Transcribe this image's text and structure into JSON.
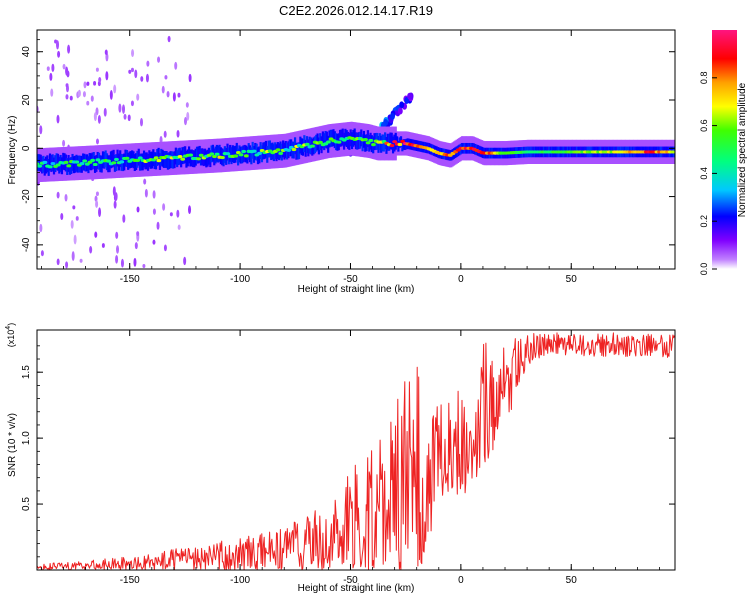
{
  "figure_title": "C2E2.2026.012.14.17.R19",
  "chart_data": [
    {
      "type": "heatmap",
      "name": "spectrogram",
      "xlabel": "Height of straight line (km)",
      "ylabel": "Frequency (Hz)",
      "xlim": [
        -192,
        97
      ],
      "ylim": [
        -50,
        49
      ],
      "xticks": [
        -150,
        -100,
        -50,
        0,
        50
      ],
      "xtick_labels": [
        "-150",
        "-100",
        "-50",
        "0",
        "50"
      ],
      "yticks": [
        -40,
        -20,
        0,
        20,
        40
      ],
      "ytick_labels": [
        "-40",
        "-20",
        "0",
        "20",
        "40"
      ],
      "ridge": {
        "x": [
          -192,
          -170,
          -150,
          -130,
          -110,
          -95,
          -80,
          -70,
          -60,
          -50,
          -42,
          -38,
          -30,
          -25,
          -20,
          -15,
          -10,
          -5,
          0,
          5,
          10,
          20,
          30,
          50,
          70,
          85,
          97
        ],
        "freq": [
          -7,
          -6,
          -5,
          -4,
          -3,
          -2,
          -1,
          1,
          3,
          4,
          3,
          2,
          2,
          2,
          1,
          0,
          -2,
          -3,
          0,
          0,
          -2,
          -2,
          -1.5,
          -1.5,
          -1.5,
          -1.5,
          -1.5
        ],
        "amplitude": [
          0.5,
          0.5,
          0.55,
          0.6,
          0.6,
          0.6,
          0.55,
          0.6,
          0.55,
          0.5,
          0.6,
          0.75,
          0.9,
          0.95,
          0.9,
          0.8,
          0.8,
          0.85,
          0.9,
          0.9,
          0.95,
          0.6,
          0.5,
          0.6,
          0.7,
          0.9,
          0.7
        ]
      },
      "secondary_branch": {
        "x": [
          -50,
          -46,
          -42,
          -38,
          -34,
          -30,
          -26,
          -22
        ],
        "freq": [
          -2,
          0,
          2,
          6,
          10,
          14,
          18,
          22
        ],
        "amplitude": [
          0.3,
          0.35,
          0.4,
          0.35,
          0.3,
          0.25,
          0.25,
          0.2
        ]
      },
      "colorbar": {
        "label": "Normalized spectral amplitude",
        "range": [
          0,
          1
        ],
        "ticks": [
          0.0,
          0.2,
          0.4,
          0.6,
          0.8
        ],
        "tick_labels": [
          "0.0",
          "0.2",
          "0.4",
          "0.6",
          "0.8"
        ]
      }
    },
    {
      "type": "line",
      "name": "snr",
      "xlabel": "Height of straight line (km)",
      "ylabel": "SNR (10 * v/v)",
      "scale_label_prefix": "(x10",
      "scale_label_exp": "4",
      "scale_label_suffix": ")",
      "xlim": [
        -192,
        97
      ],
      "ylim": [
        0,
        1.82
      ],
      "xticks": [
        -150,
        -100,
        -50,
        0,
        50
      ],
      "xtick_labels": [
        "-150",
        "-100",
        "-50",
        "0",
        "50"
      ],
      "yticks": [
        0.5,
        1.0,
        1.5
      ],
      "ytick_labels": [
        "0.5",
        "1.0",
        "1.5"
      ],
      "color": "#ee2222",
      "series": [
        {
          "name": "SNR",
          "x": [
            -192,
            -170,
            -150,
            -140,
            -130,
            -120,
            -110,
            -100,
            -90,
            -80,
            -70,
            -60,
            -55,
            -50,
            -45,
            -40,
            -35,
            -30,
            -25,
            -20,
            -15,
            -10,
            -5,
            0,
            5,
            10,
            15,
            20,
            25,
            30,
            40,
            50,
            60,
            70,
            80,
            90,
            97
          ],
          "lower": [
            0.0,
            0.0,
            0.0,
            0.0,
            0.0,
            0.0,
            0.0,
            0.0,
            0.0,
            0.0,
            0.0,
            0.0,
            0.0,
            0.0,
            0.0,
            0.0,
            0.0,
            0.0,
            0.0,
            0.0,
            0.1,
            0.55,
            0.6,
            0.55,
            0.6,
            0.8,
            0.9,
            1.1,
            1.3,
            1.55,
            1.65,
            1.62,
            1.62,
            1.62,
            1.62,
            1.62,
            1.6
          ],
          "upper": [
            0.04,
            0.08,
            0.1,
            0.12,
            0.16,
            0.19,
            0.22,
            0.25,
            0.28,
            0.32,
            0.42,
            0.52,
            0.6,
            0.75,
            0.88,
            1.0,
            1.05,
            1.3,
            1.45,
            1.57,
            1.3,
            1.25,
            1.35,
            1.5,
            1.45,
            1.78,
            1.6,
            1.72,
            1.78,
            1.8,
            1.8,
            1.8,
            1.79,
            1.8,
            1.8,
            1.8,
            1.78
          ]
        }
      ]
    }
  ]
}
